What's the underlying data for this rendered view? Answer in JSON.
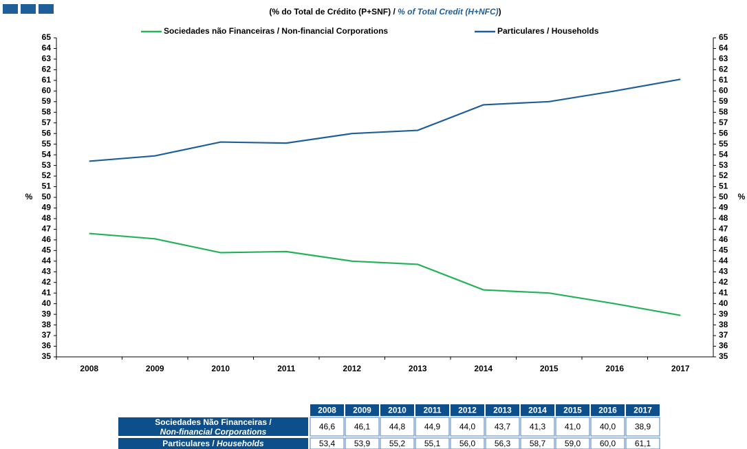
{
  "chart_data": {
    "type": "line",
    "title": [
      "(% do Total de Crédito (P+SNF) / ",
      "% of Total Credit (H+NFC)",
      ")"
    ],
    "ylabel": "%",
    "y2label": "%",
    "categories": [
      "2008",
      "2009",
      "2010",
      "2011",
      "2012",
      "2013",
      "2014",
      "2015",
      "2016",
      "2017"
    ],
    "series": [
      {
        "name": "Sociedades não Financeiras / Non-financial Corporations",
        "color": "#22b357",
        "values": [
          46.6,
          46.1,
          44.8,
          44.9,
          44.0,
          43.7,
          41.3,
          41.0,
          40.0,
          38.9
        ],
        "value_labels": [
          "46,6",
          "46,1",
          "44,8",
          "44,9",
          "44,0",
          "43,7",
          "41,3",
          "41,0",
          "40,0",
          "38,9"
        ]
      },
      {
        "name": "Particulares / Households",
        "color": "#1f5f99",
        "values": [
          53.4,
          53.9,
          55.2,
          55.1,
          56.0,
          56.3,
          58.7,
          59.0,
          60.0,
          61.1
        ],
        "value_labels": [
          "53,4",
          "53,9",
          "55,2",
          "55,1",
          "56,0",
          "56,3",
          "58,7",
          "59,0",
          "60,0",
          "61,1"
        ]
      }
    ],
    "ylim": [
      35,
      65
    ],
    "yticks": [
      35,
      36,
      37,
      38,
      39,
      40,
      41,
      42,
      43,
      44,
      45,
      46,
      47,
      48,
      49,
      50,
      51,
      52,
      53,
      54,
      55,
      56,
      57,
      58,
      59,
      60,
      61,
      62,
      63,
      64,
      65
    ],
    "y2lim": [
      35,
      65
    ],
    "y2ticks": [
      35,
      36,
      37,
      38,
      39,
      40,
      41,
      42,
      43,
      44,
      45,
      46,
      47,
      48,
      49,
      50,
      51,
      52,
      53,
      54,
      55,
      56,
      57,
      58,
      59,
      60,
      61,
      62,
      63,
      64,
      65
    ],
    "grid": false,
    "legend": "top"
  },
  "table": {
    "rows": [
      {
        "label": "Sociedades Não Financeiras /",
        "label_en": "Non-financial Corporations"
      },
      {
        "label": "Particulares / ",
        "label_en": "Households"
      }
    ]
  }
}
